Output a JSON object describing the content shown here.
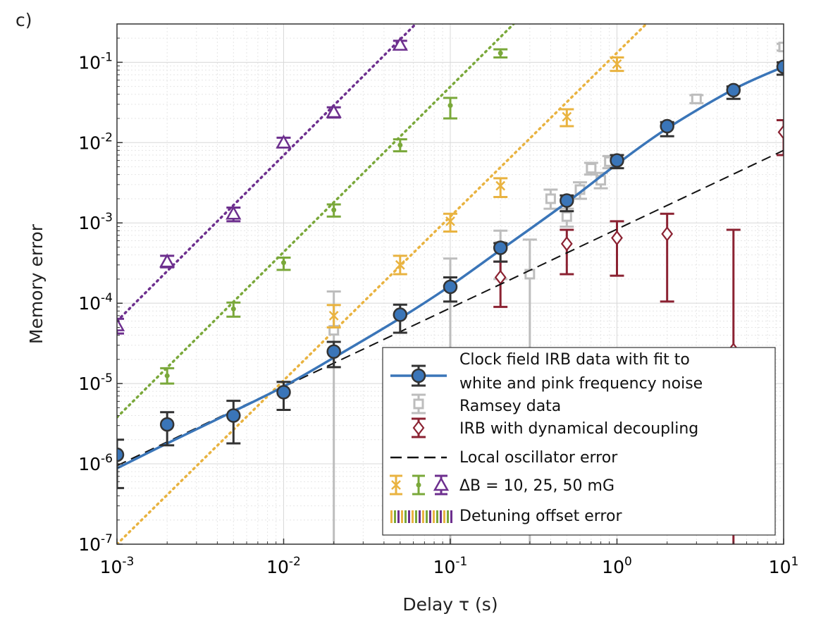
{
  "panel_label": "c)",
  "chart_data": {
    "type": "scatter",
    "xlabel": "Delay τ (s)",
    "ylabel": "Memory error",
    "xscale": "log",
    "yscale": "log",
    "xlim": [
      0.001,
      10
    ],
    "ylim": [
      1e-07,
      0.3
    ],
    "grid": true,
    "legend_position": "lower-right",
    "x_ticks": [
      {
        "value": 0.001,
        "base": "10",
        "exp": "-3"
      },
      {
        "value": 0.01,
        "base": "10",
        "exp": "-2"
      },
      {
        "value": 0.1,
        "base": "10",
        "exp": "-1"
      },
      {
        "value": 1,
        "base": "10",
        "exp": "0"
      },
      {
        "value": 10,
        "base": "10",
        "exp": "1"
      }
    ],
    "y_ticks": [
      {
        "value": 1e-07,
        "base": "10",
        "exp": "-7"
      },
      {
        "value": 1e-06,
        "base": "10",
        "exp": "-6"
      },
      {
        "value": 1e-05,
        "base": "10",
        "exp": "-5"
      },
      {
        "value": 0.0001,
        "base": "10",
        "exp": "-4"
      },
      {
        "value": 0.001,
        "base": "10",
        "exp": "-3"
      },
      {
        "value": 0.01,
        "base": "10",
        "exp": "-2"
      },
      {
        "value": 0.1,
        "base": "10",
        "exp": "-1"
      }
    ],
    "colors": {
      "irb": "#3a75b8",
      "irb_edge": "#333333",
      "ramsey": "#bdbdbd",
      "dd": "#8b2232",
      "lo": "#111111",
      "db10": "#e9b340",
      "db25": "#7aa83a",
      "db50": "#6d2f8e"
    },
    "series": [
      {
        "key": "irb",
        "name": "Clock field IRB data with fit to white and pink frequency noise",
        "marker": "circle",
        "points": [
          {
            "x": 0.001,
            "y": 1.3e-06,
            "lo": 5e-07,
            "hi": 2e-06
          },
          {
            "x": 0.002,
            "y": 3.1e-06,
            "lo": 1.7e-06,
            "hi": 4.4e-06
          },
          {
            "x": 0.005,
            "y": 4e-06,
            "lo": 1.8e-06,
            "hi": 6.1e-06
          },
          {
            "x": 0.01,
            "y": 7.8e-06,
            "lo": 4.7e-06,
            "hi": 1.05e-05
          },
          {
            "x": 0.02,
            "y": 2.5e-05,
            "lo": 1.6e-05,
            "hi": 3.3e-05
          },
          {
            "x": 0.05,
            "y": 7.2e-05,
            "lo": 4.3e-05,
            "hi": 9.6e-05
          },
          {
            "x": 0.1,
            "y": 0.00016,
            "lo": 0.000105,
            "hi": 0.00021
          },
          {
            "x": 0.2,
            "y": 0.00049,
            "lo": 0.00033,
            "hi": 0.00056
          },
          {
            "x": 0.5,
            "y": 0.0019,
            "lo": 0.0014,
            "hi": 0.0022
          },
          {
            "x": 1,
            "y": 0.006,
            "lo": 0.0048,
            "hi": 0.007
          },
          {
            "x": 2,
            "y": 0.016,
            "lo": 0.012,
            "hi": 0.018
          },
          {
            "x": 5,
            "y": 0.045,
            "lo": 0.035,
            "hi": 0.05
          },
          {
            "x": 10,
            "y": 0.088,
            "lo": 0.07,
            "hi": 0.1
          }
        ],
        "fit": [
          [
            0.001,
            8.8e-07
          ],
          [
            0.002,
            1.8e-06
          ],
          [
            0.005,
            4.5e-06
          ],
          [
            0.01,
            9.2e-06
          ],
          [
            0.02,
            2.1e-05
          ],
          [
            0.05,
            6.5e-05
          ],
          [
            0.1,
            0.000165
          ],
          [
            0.2,
            0.00046
          ],
          [
            0.5,
            0.0018
          ],
          [
            1,
            0.0054
          ],
          [
            2,
            0.015
          ],
          [
            5,
            0.046
          ],
          [
            10,
            0.088
          ]
        ]
      },
      {
        "key": "ramsey",
        "name": "Ramsey data",
        "marker": "square",
        "points": [
          {
            "x": 0.02,
            "y": 4.6e-05,
            "lo": 1e-08,
            "hi": 0.00014
          },
          {
            "x": 0.1,
            "y": 0.00016,
            "lo": 1e-08,
            "hi": 0.00036
          },
          {
            "x": 0.2,
            "y": 0.00051,
            "lo": 0.0002,
            "hi": 0.0008
          },
          {
            "x": 0.3,
            "y": 0.00023,
            "lo": 1e-08,
            "hi": 0.00062
          },
          {
            "x": 0.4,
            "y": 0.002,
            "lo": 0.0015,
            "hi": 0.0026
          },
          {
            "x": 0.5,
            "y": 0.0012,
            "lo": 0.0009,
            "hi": 0.0015
          },
          {
            "x": 0.6,
            "y": 0.0026,
            "lo": 0.002,
            "hi": 0.0032
          },
          {
            "x": 0.7,
            "y": 0.0048,
            "lo": 0.004,
            "hi": 0.0056
          },
          {
            "x": 0.8,
            "y": 0.0034,
            "lo": 0.0027,
            "hi": 0.0042
          },
          {
            "x": 0.9,
            "y": 0.0058,
            "lo": 0.0048,
            "hi": 0.0068
          },
          {
            "x": 3,
            "y": 0.035,
            "lo": 0.031,
            "hi": 0.039
          },
          {
            "x": 10,
            "y": 0.155,
            "lo": 0.14,
            "hi": 0.17
          }
        ]
      },
      {
        "key": "dd",
        "name": "IRB with dynamical decoupling",
        "marker": "diamond",
        "points": [
          {
            "x": 0.2,
            "y": 0.00021,
            "lo": 9e-05,
            "hi": 0.00033
          },
          {
            "x": 0.5,
            "y": 0.00055,
            "lo": 0.00023,
            "hi": 0.00082
          },
          {
            "x": 1,
            "y": 0.00065,
            "lo": 0.00022,
            "hi": 0.00105
          },
          {
            "x": 2,
            "y": 0.00073,
            "lo": 0.000105,
            "hi": 0.0013
          },
          {
            "x": 5,
            "y": 2.6e-05,
            "lo": 1e-08,
            "hi": 0.00082
          },
          {
            "x": 10,
            "y": 0.0135,
            "lo": 0.007,
            "hi": 0.019
          }
        ]
      },
      {
        "key": "lo",
        "name": "Local oscillator error",
        "line": [
          [
            0.001,
            9.5e-07
          ],
          [
            10,
            0.008
          ]
        ]
      },
      {
        "key": "db10",
        "name": "ΔB = 10, 25, 50 mG",
        "marker": "x",
        "points": [
          {
            "x": 0.02,
            "y": 7e-05,
            "lo": 5e-05,
            "hi": 9.5e-05
          },
          {
            "x": 0.05,
            "y": 0.0003,
            "lo": 0.00023,
            "hi": 0.00039
          },
          {
            "x": 0.1,
            "y": 0.00105,
            "lo": 0.00078,
            "hi": 0.0013
          },
          {
            "x": 0.2,
            "y": 0.0029,
            "lo": 0.0021,
            "hi": 0.0036
          },
          {
            "x": 0.5,
            "y": 0.021,
            "lo": 0.016,
            "hi": 0.026
          },
          {
            "x": 1,
            "y": 0.095,
            "lo": 0.078,
            "hi": 0.115
          }
        ],
        "dotted": [
          [
            0.001,
            1e-07
          ],
          [
            1.5,
            0.3
          ]
        ]
      },
      {
        "key": "db25",
        "name": "",
        "marker": "dot",
        "points": [
          {
            "x": 0.002,
            "y": 1.25e-05,
            "lo": 1e-05,
            "hi": 1.55e-05
          },
          {
            "x": 0.005,
            "y": 8.5e-05,
            "lo": 6.8e-05,
            "hi": 0.000102
          },
          {
            "x": 0.01,
            "y": 0.00032,
            "lo": 0.00026,
            "hi": 0.00037
          },
          {
            "x": 0.02,
            "y": 0.00145,
            "lo": 0.0012,
            "hi": 0.0017
          },
          {
            "x": 0.05,
            "y": 0.0093,
            "lo": 0.0078,
            "hi": 0.011
          },
          {
            "x": 0.1,
            "y": 0.029,
            "lo": 0.02,
            "hi": 0.036
          },
          {
            "x": 0.2,
            "y": 0.13,
            "lo": 0.115,
            "hi": 0.145
          }
        ],
        "dotted": [
          [
            0.001,
            3.8e-06
          ],
          [
            0.24,
            0.3
          ]
        ]
      },
      {
        "key": "db50",
        "name": "",
        "marker": "triangle",
        "points": [
          {
            "x": 0.001,
            "y": 5.3e-05,
            "lo": 4.2e-05,
            "hi": 6.4e-05
          },
          {
            "x": 0.002,
            "y": 0.00033,
            "lo": 0.00028,
            "hi": 0.00039
          },
          {
            "x": 0.005,
            "y": 0.0013,
            "lo": 0.00105,
            "hi": 0.00155
          },
          {
            "x": 0.01,
            "y": 0.01,
            "lo": 0.0087,
            "hi": 0.0115
          },
          {
            "x": 0.02,
            "y": 0.024,
            "lo": 0.0205,
            "hi": 0.0275
          },
          {
            "x": 0.05,
            "y": 0.165,
            "lo": 0.145,
            "hi": 0.185
          }
        ],
        "dotted": [
          [
            0.001,
            6e-05
          ],
          [
            0.062,
            0.3
          ]
        ]
      }
    ],
    "legend": [
      {
        "key": "irb",
        "lines": [
          "Clock field IRB data with fit to",
          "white and pink frequency noise"
        ]
      },
      {
        "key": "ramsey",
        "lines": [
          "Ramsey data"
        ]
      },
      {
        "key": "dd",
        "lines": [
          "IRB with dynamical decoupling"
        ]
      },
      {
        "key": "lo",
        "lines": [
          "Local oscillator error"
        ]
      },
      {
        "key": "db",
        "lines": [
          "ΔB = 10, 25, 50 mG"
        ]
      },
      {
        "key": "detune",
        "lines": [
          "Detuning offset error"
        ]
      }
    ]
  }
}
